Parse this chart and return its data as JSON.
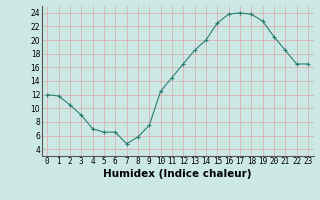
{
  "x": [
    0,
    1,
    2,
    3,
    4,
    5,
    6,
    7,
    8,
    9,
    10,
    11,
    12,
    13,
    14,
    15,
    16,
    17,
    18,
    19,
    20,
    21,
    22,
    23
  ],
  "y": [
    12,
    11.8,
    10.5,
    9,
    7,
    6.5,
    6.5,
    4.8,
    5.8,
    7.5,
    12.5,
    14.5,
    16.5,
    18.5,
    20,
    22.5,
    23.8,
    24,
    23.8,
    22.8,
    20.5,
    18.5,
    16.5,
    16.5
  ],
  "line_color": "#2e7d72",
  "marker_color": "#2e7d72",
  "bg_color": "#cce8e4",
  "grid_color": "#dba8a8",
  "xlabel": "Humidex (Indice chaleur)",
  "xlim": [
    -0.5,
    23.5
  ],
  "ylim": [
    3,
    25
  ],
  "yticks": [
    4,
    6,
    8,
    10,
    12,
    14,
    16,
    18,
    20,
    22,
    24
  ],
  "xticks": [
    0,
    1,
    2,
    3,
    4,
    5,
    6,
    7,
    8,
    9,
    10,
    11,
    12,
    13,
    14,
    15,
    16,
    17,
    18,
    19,
    20,
    21,
    22,
    23
  ],
  "tick_labelsize": 5.5,
  "xlabel_fontsize": 7.5,
  "ylabel_fontsize": 6
}
